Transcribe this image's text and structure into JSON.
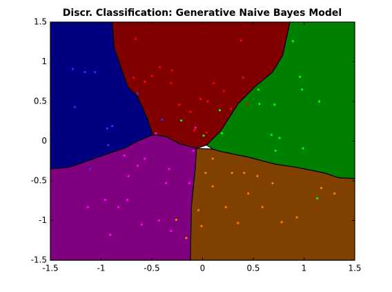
{
  "chart_data": {
    "type": "scatter",
    "title": "Discr. Classification: Generative Naive Bayes Model",
    "xlim": [
      -1.5,
      1.5
    ],
    "ylim": [
      -1.5,
      1.5
    ],
    "xticks": [
      -1.5,
      -1,
      -0.5,
      0,
      0.5,
      1,
      1.5
    ],
    "yticks": [
      -1.5,
      -1,
      -0.5,
      0,
      0.5,
      1,
      1.5
    ],
    "regions": [
      {
        "color": "#000080",
        "x": [
          -1.5,
          -0.89,
          -0.87,
          -0.74,
          -0.64,
          -0.55,
          -0.49,
          -0.64,
          -0.77,
          -0.98,
          -1.18,
          -1.32,
          -1.5
        ],
        "y": [
          1.5,
          1.5,
          1.17,
          0.69,
          0.56,
          0.3,
          0.08,
          0.0,
          -0.09,
          -0.18,
          -0.27,
          -0.33,
          -0.35
        ]
      },
      {
        "color": "#800080",
        "x": [
          -1.5,
          -1.32,
          -1.18,
          -0.98,
          -0.77,
          -0.64,
          -0.49,
          -0.36,
          -0.23,
          -0.06,
          -0.07,
          -0.11,
          -0.12,
          -1.5
        ],
        "y": [
          -0.35,
          -0.33,
          -0.27,
          -0.18,
          -0.09,
          0.0,
          0.08,
          0.06,
          -0.03,
          -0.09,
          -0.31,
          -0.83,
          -1.5,
          -1.5
        ]
      },
      {
        "color": "#804000",
        "x": [
          -0.06,
          0.1,
          0.18,
          0.45,
          0.72,
          0.93,
          1.2,
          1.34,
          1.5,
          1.5,
          -0.12,
          -0.11,
          -0.07
        ],
        "y": [
          -0.09,
          -0.1,
          -0.13,
          -0.2,
          -0.29,
          -0.33,
          -0.4,
          -0.46,
          -0.47,
          -1.5,
          -1.5,
          -0.83,
          -0.31
        ]
      },
      {
        "color": "#800000",
        "x": [
          -0.89,
          0.86,
          0.85,
          0.79,
          0.69,
          0.52,
          0.35,
          0.18,
          0.04,
          -0.06,
          -0.23,
          -0.36,
          -0.49,
          -0.55,
          -0.64,
          -0.74,
          -0.87
        ],
        "y": [
          1.5,
          1.5,
          1.43,
          1.08,
          0.87,
          0.69,
          0.47,
          0.13,
          -0.05,
          -0.09,
          -0.03,
          0.06,
          0.08,
          0.3,
          0.56,
          0.69,
          1.17
        ]
      },
      {
        "color": "#008000",
        "x": [
          0.86,
          1.5,
          1.5,
          1.34,
          1.2,
          0.93,
          0.72,
          0.45,
          0.18,
          0.1,
          0.04,
          0.18,
          0.35,
          0.52,
          0.69,
          0.79,
          0.85
        ],
        "y": [
          1.5,
          1.5,
          -0.47,
          -0.46,
          -0.4,
          -0.33,
          -0.29,
          -0.2,
          -0.13,
          -0.1,
          -0.05,
          0.13,
          0.47,
          0.69,
          0.87,
          1.08,
          1.43
        ]
      }
    ],
    "series": [
      {
        "color": "#3030ff",
        "x": [
          -1.28,
          -1.16,
          -1.06,
          -1.26,
          -0.94,
          -0.89,
          -0.93,
          -1.11,
          -0.4,
          -0.64
        ],
        "values": [
          0.91,
          0.87,
          0.87,
          0.43,
          0.16,
          0.19,
          -0.05,
          -0.35,
          0.27,
          0.6
        ]
      },
      {
        "color": "#ff0000",
        "x": [
          -0.66,
          0.38,
          -0.3,
          -0.42,
          -0.5,
          -0.68,
          -0.57,
          -0.31,
          -0.02,
          -0.12,
          0.05,
          0.21,
          0.4,
          0.44,
          0.11,
          -0.23,
          0.04,
          -0.08,
          0.28
        ],
        "values": [
          1.29,
          1.27,
          0.89,
          0.93,
          0.82,
          0.8,
          0.75,
          0.73,
          0.53,
          0.37,
          0.5,
          0.63,
          0.8,
          0.47,
          0.73,
          0.46,
          0.11,
          0.14,
          0.41
        ]
      },
      {
        "color": "#00ff00",
        "x": [
          0.89,
          0.98,
          1.15,
          0.71,
          0.96,
          0.55,
          0.68,
          0.76,
          0.72,
          0.99,
          -0.21,
          0.17,
          0.01,
          0.19,
          1.13,
          0.56
        ],
        "values": [
          1.26,
          0.65,
          0.5,
          0.46,
          0.81,
          0.65,
          0.08,
          0.04,
          -0.12,
          -0.09,
          0.26,
          0.39,
          0.07,
          0.1,
          -0.72,
          0.47
        ]
      },
      {
        "color": "#ff00ff",
        "x": [
          -1.13,
          -0.96,
          -0.83,
          -0.74,
          -0.6,
          -0.64,
          -0.57,
          -0.77,
          -0.36,
          -0.33,
          -0.43,
          -0.91,
          -0.31,
          -0.73,
          -0.13,
          -0.46,
          -0.09,
          -0.07
        ],
        "values": [
          -0.83,
          -0.74,
          -0.83,
          -0.74,
          -1.05,
          -0.31,
          -0.22,
          -0.18,
          -0.53,
          -0.35,
          -1.0,
          -1.18,
          -1.13,
          -0.44,
          -0.53,
          0.1,
          -0.12,
          0.17
        ]
      },
      {
        "color": "#ff8000",
        "x": [
          -0.26,
          -0.16,
          -0.01,
          -0.04,
          0.1,
          0.35,
          0.45,
          0.59,
          0.78,
          0.93,
          1.17,
          1.3,
          0.69,
          0.54,
          0.29,
          0.03,
          0.23,
          0.41,
          0.1
        ],
        "values": [
          -0.99,
          -1.22,
          -1.07,
          -0.87,
          -0.57,
          -1.03,
          -0.66,
          -0.83,
          -1.02,
          -0.96,
          -0.59,
          -0.66,
          -0.53,
          -0.44,
          -0.4,
          -0.4,
          -0.83,
          -0.4,
          -0.22
        ]
      }
    ]
  }
}
